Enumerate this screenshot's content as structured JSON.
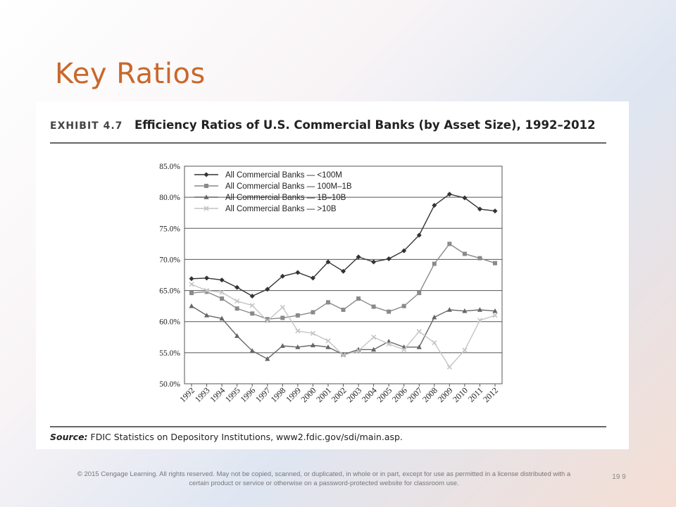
{
  "slide": {
    "title": "Key Ratios",
    "footer": "© 2015 Cengage Learning. All rights reserved. May not be copied, scanned, or duplicated, in whole or in part, except for use as permitted in a license distributed with a certain product or service or otherwise on a password-protected website for classroom use.",
    "page_number": "19 9"
  },
  "exhibit": {
    "number": "EXHIBIT 4.7",
    "title": "Efficiency Ratios of U.S. Commercial Banks (by Asset Size), 1992–2012",
    "source_label": "Source:",
    "source_text": " FDIC Statistics on Depository Institutions, www2.fdic.gov/sdi/main.asp."
  },
  "chart_data": {
    "type": "line",
    "title": "Efficiency Ratios of U.S. Commercial Banks (by Asset Size), 1992–2012",
    "x": [
      "1992",
      "1993",
      "1994",
      "1995",
      "1996",
      "1997",
      "1998",
      "1999",
      "2000",
      "2001",
      "2002",
      "2003",
      "2004",
      "2005",
      "2006",
      "2007",
      "2008",
      "2009",
      "2010",
      "2011",
      "2012"
    ],
    "ylim": [
      50,
      85
    ],
    "yticks": [
      "50.0%",
      "55.0%",
      "60.0%",
      "65.0%",
      "70.0%",
      "75.0%",
      "80.0%",
      "85.0%"
    ],
    "grid": "horizontal",
    "legend": "top-left",
    "series": [
      {
        "name": "All Commercial Banks — <100M",
        "color": "#333333",
        "marker": "diamond",
        "values": [
          66.9,
          67.0,
          66.7,
          65.5,
          64.1,
          65.2,
          67.3,
          67.9,
          67.0,
          69.6,
          68.1,
          70.4,
          69.6,
          70.1,
          71.4,
          73.9,
          78.7,
          80.5,
          79.9,
          78.1,
          77.8
        ]
      },
      {
        "name": "All Commercial Banks — 100M–1B",
        "color": "#8a8a8a",
        "marker": "square",
        "values": [
          64.6,
          64.8,
          63.7,
          62.1,
          61.3,
          60.4,
          60.6,
          61.0,
          61.5,
          63.1,
          61.9,
          63.7,
          62.4,
          61.6,
          62.5,
          64.6,
          69.3,
          72.5,
          70.9,
          70.2,
          69.4
        ]
      },
      {
        "name": "All Commercial Banks — 1B–10B",
        "color": "#666666",
        "marker": "triangle",
        "values": [
          62.5,
          61.0,
          60.5,
          57.7,
          55.3,
          54.0,
          56.1,
          55.9,
          56.2,
          55.9,
          54.7,
          55.5,
          55.5,
          56.8,
          55.9,
          55.9,
          60.7,
          61.9,
          61.7,
          61.9,
          61.7
        ]
      },
      {
        "name": "All Commercial Banks — >10B",
        "color": "#c4c4c4",
        "marker": "x",
        "values": [
          66.0,
          65.0,
          64.7,
          63.3,
          62.6,
          60.1,
          62.3,
          58.5,
          58.1,
          56.9,
          54.6,
          55.3,
          57.5,
          56.4,
          55.5,
          58.4,
          56.6,
          52.7,
          55.4,
          60.2,
          61.0
        ]
      }
    ]
  }
}
